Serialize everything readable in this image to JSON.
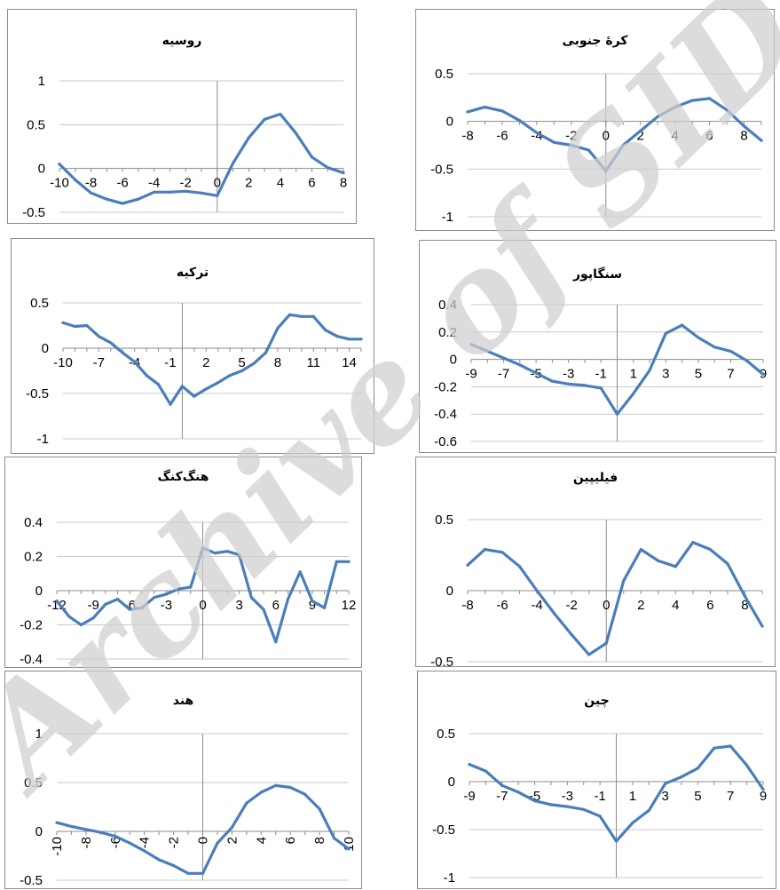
{
  "watermark": "Archive of SID",
  "colors": {
    "line": "#4a7ebb",
    "grid": "#c8c8c8",
    "axis": "#8c8c8c",
    "watermark": "#cfcfcf"
  },
  "chart_data": [
    {
      "type": "line",
      "title": "روسیه",
      "ylim": [
        -0.5,
        1
      ],
      "yticks": [
        "1",
        "0.5",
        "0",
        "-0.5"
      ],
      "xmin": -10,
      "xmax": 8,
      "xtick_labels": [
        "-10",
        "-8",
        "-6",
        "-4",
        "-2",
        "0",
        "2",
        "4",
        "6",
        "8"
      ],
      "x": [
        -10,
        -9,
        -8,
        -7,
        -6,
        -5,
        -4,
        -3,
        -2,
        -1,
        0,
        1,
        2,
        3,
        4,
        5,
        6,
        7,
        8
      ],
      "y": [
        0.05,
        -0.13,
        -0.28,
        -0.35,
        -0.4,
        -0.35,
        -0.27,
        -0.27,
        -0.26,
        -0.28,
        -0.31,
        0.06,
        0.35,
        0.56,
        0.62,
        0.4,
        0.13,
        0.01,
        -0.05
      ]
    },
    {
      "type": "line",
      "title": "کرهٔ جنوبی",
      "ylim": [
        -1,
        0.5
      ],
      "yticks": [
        "0.5",
        "0",
        "-0.5",
        "-1"
      ],
      "xmin": -8,
      "xmax": 9,
      "xtick_labels": [
        "-8",
        "-6",
        "-4",
        "-2",
        "0",
        "2",
        "4",
        "6",
        "8"
      ],
      "x": [
        -8,
        -7,
        -6,
        -5,
        -4,
        -3,
        -2,
        -1,
        0,
        1,
        2,
        3,
        4,
        5,
        6,
        7,
        8,
        9
      ],
      "y": [
        0.1,
        0.15,
        0.11,
        0.01,
        -0.12,
        -0.22,
        -0.25,
        -0.3,
        -0.52,
        -0.25,
        -0.1,
        0.05,
        0.15,
        0.22,
        0.24,
        0.12,
        -0.05,
        -0.2
      ]
    },
    {
      "type": "line",
      "title": "ترکیه",
      "ylim": [
        -1,
        0.5
      ],
      "yticks": [
        "0.5",
        "0",
        "-0.5",
        "-1"
      ],
      "xmin": -10,
      "xmax": 15,
      "xtick_labels": [
        "-10",
        "-7",
        "-4",
        "-1",
        "2",
        "5",
        "8",
        "11",
        "14"
      ],
      "x": [
        -10,
        -9,
        -8,
        -7,
        -6,
        -5,
        -4,
        -3,
        -2,
        -1,
        0,
        1,
        2,
        3,
        4,
        5,
        6,
        7,
        8,
        9,
        10,
        11,
        12,
        13,
        14,
        15
      ],
      "y": [
        0.28,
        0.24,
        0.25,
        0.13,
        0.06,
        -0.05,
        -0.15,
        -0.3,
        -0.4,
        -0.62,
        -0.42,
        -0.53,
        -0.45,
        -0.38,
        -0.3,
        -0.25,
        -0.17,
        -0.05,
        0.22,
        0.37,
        0.35,
        0.35,
        0.2,
        0.13,
        0.1,
        0.1
      ]
    },
    {
      "type": "line",
      "title": "سنگاپور",
      "ylim": [
        -0.6,
        0.4
      ],
      "yticks": [
        "0.4",
        "0.2",
        "0",
        "-0.2",
        "-0.4",
        "-0.6"
      ],
      "xmin": -9,
      "xmax": 9,
      "xtick_labels": [
        "-9",
        "-7",
        "-5",
        "-3",
        "-1",
        "1",
        "3",
        "5",
        "7",
        "9"
      ],
      "x": [
        -9,
        -8,
        -7,
        -6,
        -5,
        -4,
        -3,
        -2,
        -1,
        0,
        1,
        2,
        3,
        4,
        5,
        6,
        7,
        8,
        9
      ],
      "y": [
        0.11,
        0.06,
        0.01,
        -0.04,
        -0.1,
        -0.16,
        -0.18,
        -0.19,
        -0.21,
        -0.4,
        -0.25,
        -0.08,
        0.19,
        0.25,
        0.16,
        0.09,
        0.06,
        -0.01,
        -0.11
      ]
    },
    {
      "type": "line",
      "title": "هنگ‌کنگ",
      "ylim": [
        -0.4,
        0.4
      ],
      "yticks": [
        "0.4",
        "0.2",
        "0",
        "-0.2",
        "-0.4"
      ],
      "xmin": -12,
      "xmax": 12,
      "xtick_labels": [
        "-12",
        "-9",
        "-6",
        "-3",
        "0",
        "3",
        "6",
        "9",
        "12"
      ],
      "x": [
        -12,
        -11,
        -10,
        -9,
        -8,
        -7,
        -6,
        -5,
        -4,
        -3,
        -2,
        -1,
        0,
        1,
        2,
        3,
        4,
        5,
        6,
        7,
        8,
        9,
        10,
        11,
        12
      ],
      "y": [
        -0.06,
        -0.15,
        -0.2,
        -0.16,
        -0.08,
        -0.05,
        -0.11,
        -0.1,
        -0.04,
        -0.02,
        0.01,
        0.02,
        0.25,
        0.22,
        0.23,
        0.21,
        -0.04,
        -0.11,
        -0.3,
        -0.05,
        0.11,
        -0.06,
        -0.1,
        0.17,
        0.17
      ]
    },
    {
      "type": "line",
      "title": "فیلیپین",
      "ylim": [
        -0.5,
        0.5
      ],
      "yticks": [
        "0.5",
        "0",
        "-0.5"
      ],
      "xmin": -8,
      "xmax": 9,
      "xtick_labels": [
        "-8",
        "-6",
        "-4",
        "-2",
        "0",
        "2",
        "4",
        "6",
        "8"
      ],
      "x": [
        -8,
        -7,
        -6,
        -5,
        -4,
        -3,
        -2,
        -1,
        0,
        1,
        2,
        3,
        4,
        5,
        6,
        7,
        8,
        9
      ],
      "y": [
        0.18,
        0.29,
        0.27,
        0.17,
        0.0,
        -0.16,
        -0.31,
        -0.45,
        -0.37,
        0.07,
        0.29,
        0.21,
        0.17,
        0.34,
        0.29,
        0.19,
        -0.04,
        -0.25
      ]
    },
    {
      "type": "line",
      "title": "هند",
      "ylim": [
        -0.5,
        1
      ],
      "yticks": [
        "1",
        "0.5",
        "0",
        "-0.5"
      ],
      "xmin": -10,
      "xmax": 10,
      "xtick_labels": [
        "-10",
        "-8",
        "-6",
        "-4",
        "-2",
        "0",
        "2",
        "4",
        "6",
        "8",
        "10"
      ],
      "x": [
        -10,
        -9,
        -8,
        -7,
        -6,
        -5,
        -4,
        -3,
        -2,
        -1,
        0,
        1,
        2,
        3,
        4,
        5,
        6,
        7,
        8,
        9,
        10
      ],
      "y": [
        0.09,
        0.05,
        0.02,
        -0.01,
        -0.05,
        -0.12,
        -0.2,
        -0.29,
        -0.35,
        -0.43,
        -0.43,
        -0.12,
        0.04,
        0.29,
        0.4,
        0.47,
        0.45,
        0.38,
        0.23,
        -0.07,
        -0.18
      ]
    },
    {
      "type": "line",
      "title": "چین",
      "ylim": [
        -1,
        0.5
      ],
      "yticks": [
        "0.5",
        "0",
        "-0.5",
        "-1"
      ],
      "xmin": -9,
      "xmax": 9,
      "xtick_labels": [
        "-9",
        "-7",
        "-5",
        "-3",
        "-1",
        "1",
        "3",
        "5",
        "7",
        "9"
      ],
      "x": [
        -9,
        -8,
        -7,
        -6,
        -5,
        -4,
        -3,
        -2,
        -1,
        0,
        1,
        2,
        3,
        4,
        5,
        6,
        7,
        8,
        9
      ],
      "y": [
        0.18,
        0.11,
        -0.04,
        -0.11,
        -0.2,
        -0.24,
        -0.26,
        -0.29,
        -0.36,
        -0.62,
        -0.43,
        -0.3,
        -0.02,
        0.05,
        0.14,
        0.35,
        0.37,
        0.17,
        -0.08
      ]
    }
  ]
}
